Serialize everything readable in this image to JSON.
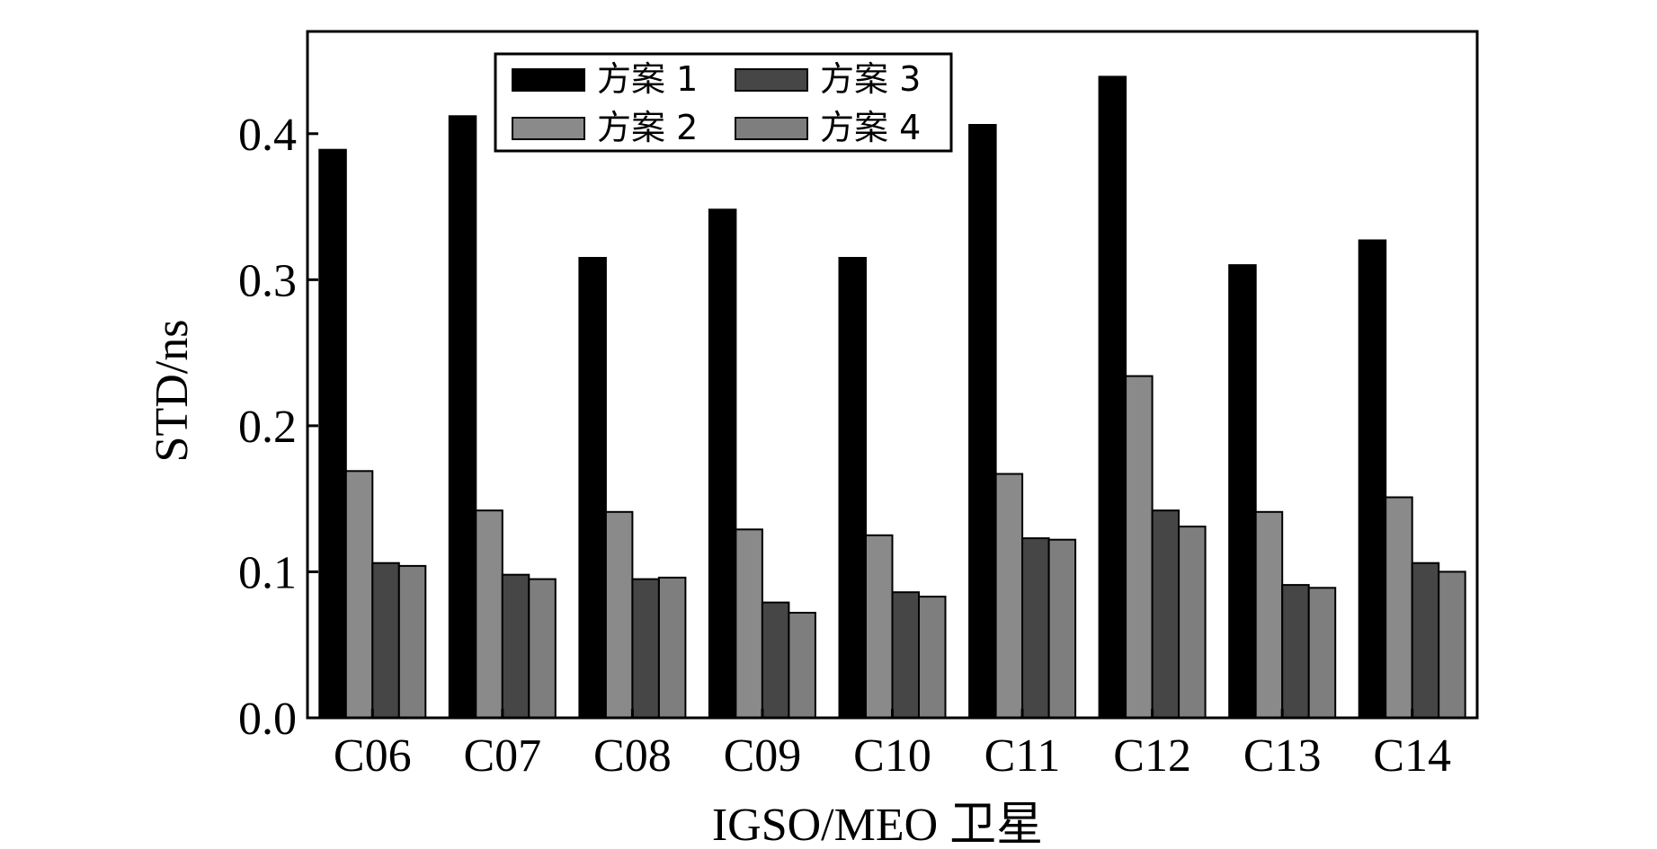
{
  "chart_data": {
    "type": "bar",
    "xlabel": "IGSO/MEO 卫星",
    "ylabel": "STD/ns",
    "ylim": [
      0.0,
      0.47
    ],
    "yticks": [
      "0.0",
      "0.1",
      "0.2",
      "0.3",
      "0.4"
    ],
    "categories": [
      "C06",
      "C07",
      "C08",
      "C09",
      "C10",
      "C11",
      "C12",
      "C13",
      "C14"
    ],
    "series": [
      {
        "name": "方案 1",
        "color": "#000000",
        "values": [
          0.389,
          0.412,
          0.315,
          0.348,
          0.315,
          0.406,
          0.439,
          0.31,
          0.327
        ]
      },
      {
        "name": "方案 2",
        "color": "#8a8a8a",
        "values": [
          0.169,
          0.142,
          0.141,
          0.129,
          0.125,
          0.167,
          0.234,
          0.141,
          0.151
        ]
      },
      {
        "name": "方案 3",
        "color": "#464646",
        "values": [
          0.106,
          0.098,
          0.095,
          0.079,
          0.086,
          0.123,
          0.142,
          0.091,
          0.106
        ]
      },
      {
        "name": "方案 4",
        "color": "#7e7e7e",
        "values": [
          0.104,
          0.095,
          0.096,
          0.072,
          0.083,
          0.122,
          0.131,
          0.089,
          0.1
        ]
      }
    ],
    "legend_position": "top-left",
    "grid": false
  }
}
